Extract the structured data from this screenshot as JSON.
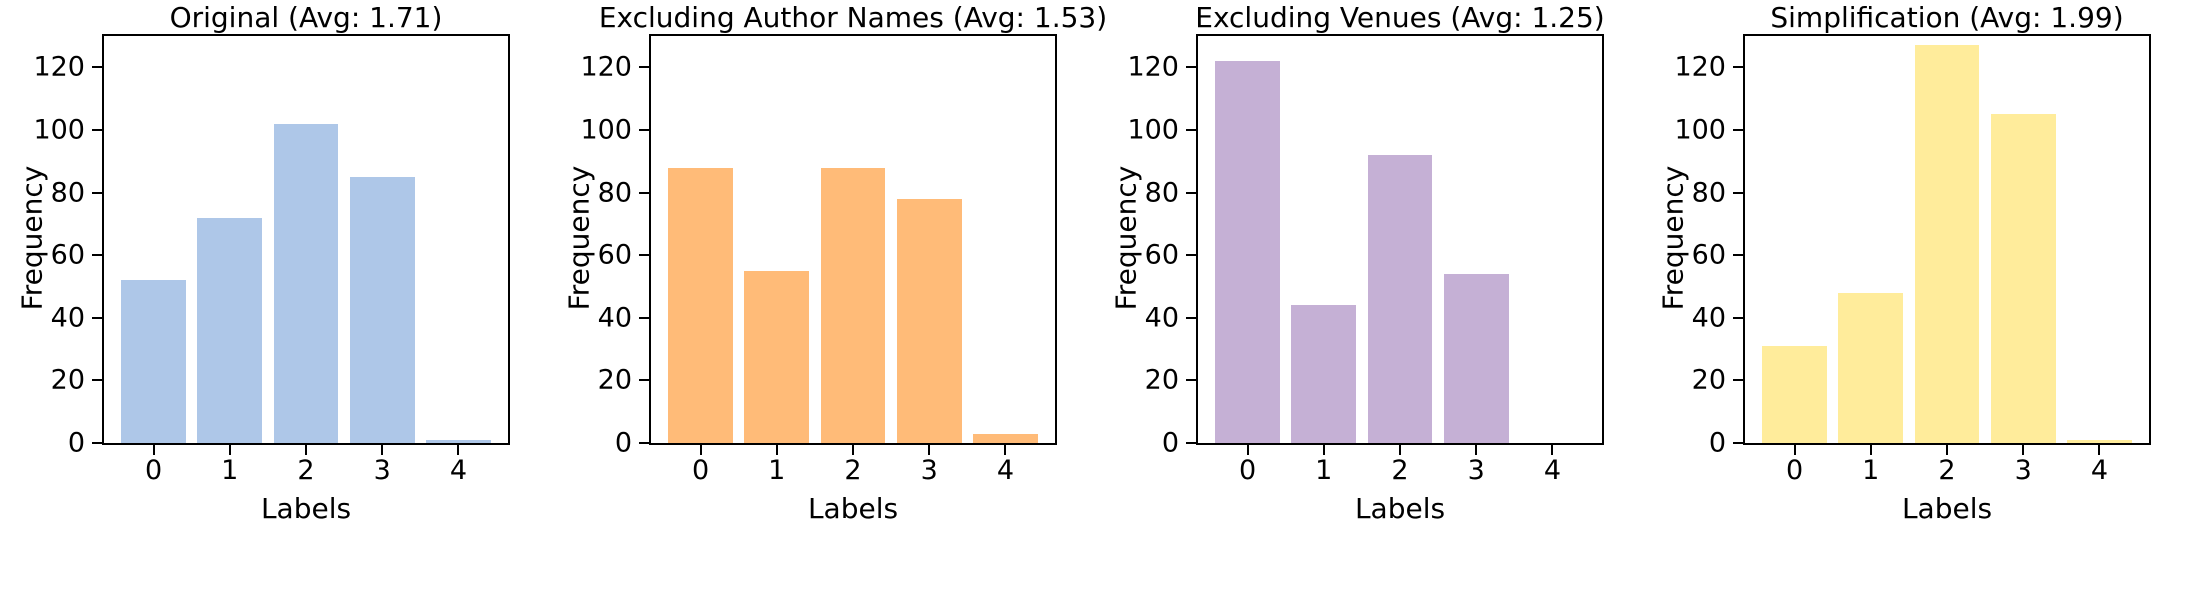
{
  "figure": {
    "background": "#ffffff",
    "text_color": "#000000",
    "axis_color": "#000000"
  },
  "chart_data": [
    {
      "type": "bar",
      "title": "Original (Avg: 1.71)",
      "average": "1.71",
      "xlabel": "Labels",
      "ylabel": "Frequency",
      "categories": [
        "0",
        "1",
        "2",
        "3",
        "4"
      ],
      "values": [
        52,
        72,
        102,
        85,
        1
      ],
      "bar_color": "#aec7e8",
      "ylim": [
        0,
        130
      ],
      "yticks": [
        0,
        20,
        40,
        60,
        80,
        100,
        120
      ],
      "xlim": [
        -0.65,
        4.65
      ],
      "bar_width": 0.85,
      "grid": false,
      "legend": "none"
    },
    {
      "type": "bar",
      "title": "Excluding Author Names (Avg: 1.53)",
      "average": "1.53",
      "xlabel": "Labels",
      "ylabel": "Frequency",
      "categories": [
        "0",
        "1",
        "2",
        "3",
        "4"
      ],
      "values": [
        88,
        55,
        88,
        78,
        3
      ],
      "bar_color": "#ffbb78",
      "ylim": [
        0,
        130
      ],
      "yticks": [
        0,
        20,
        40,
        60,
        80,
        100,
        120
      ],
      "xlim": [
        -0.65,
        4.65
      ],
      "bar_width": 0.85,
      "grid": false,
      "legend": "none"
    },
    {
      "type": "bar",
      "title": "Excluding Venues (Avg: 1.25)",
      "average": "1.25",
      "xlabel": "Labels",
      "ylabel": "Frequency",
      "categories": [
        "0",
        "1",
        "2",
        "3",
        "4"
      ],
      "values": [
        122,
        44,
        92,
        54,
        0
      ],
      "bar_color": "#c5b0d5",
      "ylim": [
        0,
        130
      ],
      "yticks": [
        0,
        20,
        40,
        60,
        80,
        100,
        120
      ],
      "xlim": [
        -0.65,
        4.65
      ],
      "bar_width": 0.85,
      "grid": false,
      "legend": "none"
    },
    {
      "type": "bar",
      "title": "Simplification (Avg: 1.99)",
      "average": "1.99",
      "xlabel": "Labels",
      "ylabel": "Frequency",
      "categories": [
        "0",
        "1",
        "2",
        "3",
        "4"
      ],
      "values": [
        31,
        48,
        127,
        105,
        1
      ],
      "bar_color": "#ffec9b",
      "ylim": [
        0,
        130
      ],
      "yticks": [
        0,
        20,
        40,
        60,
        80,
        100,
        120
      ],
      "xlim": [
        -0.65,
        4.65
      ],
      "bar_width": 0.85,
      "grid": false,
      "legend": "none"
    }
  ]
}
